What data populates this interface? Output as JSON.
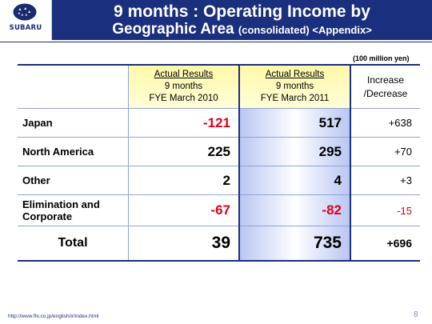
{
  "brand": {
    "logo_text": "SUBARU"
  },
  "header": {
    "title_line1": "9 months : Operating Income by",
    "title_line2_main": "Geographic Area",
    "title_line2_small": "(consolidated) <Appendix>"
  },
  "table": {
    "unit": "(100 million yen)",
    "col_2010": {
      "line1": "Actual Results",
      "line2": "9 months",
      "line3": "FYE March 2010"
    },
    "col_2011": {
      "line1": "Actual Results",
      "line2": "9 months",
      "line3": "FYE March 2011"
    },
    "col_inc": {
      "line1": "Increase",
      "line2": "/Decrease"
    },
    "rows": [
      {
        "label": "Japan",
        "v2010": "-121",
        "v2011": "517",
        "inc": "+638"
      },
      {
        "label": "North America",
        "v2010": "225",
        "v2011": "295",
        "inc": "+70"
      },
      {
        "label": "Other",
        "v2010": "2",
        "v2011": "4",
        "inc": "+3"
      },
      {
        "label_line1": "Elimination and",
        "label_line2": "Corporate",
        "v2010": "-67",
        "v2011": "-82",
        "inc": "-15"
      },
      {
        "label": "Total",
        "v2010": "39",
        "v2011": "735",
        "inc": "+696"
      }
    ]
  },
  "footer": {
    "url": "http://www.fhi.co.jp/english/ir/index.html",
    "page": "8"
  },
  "colors": {
    "navy": "#1a2f7d",
    "negative": "#e0001b",
    "header_yellow": "#fff9a8"
  }
}
